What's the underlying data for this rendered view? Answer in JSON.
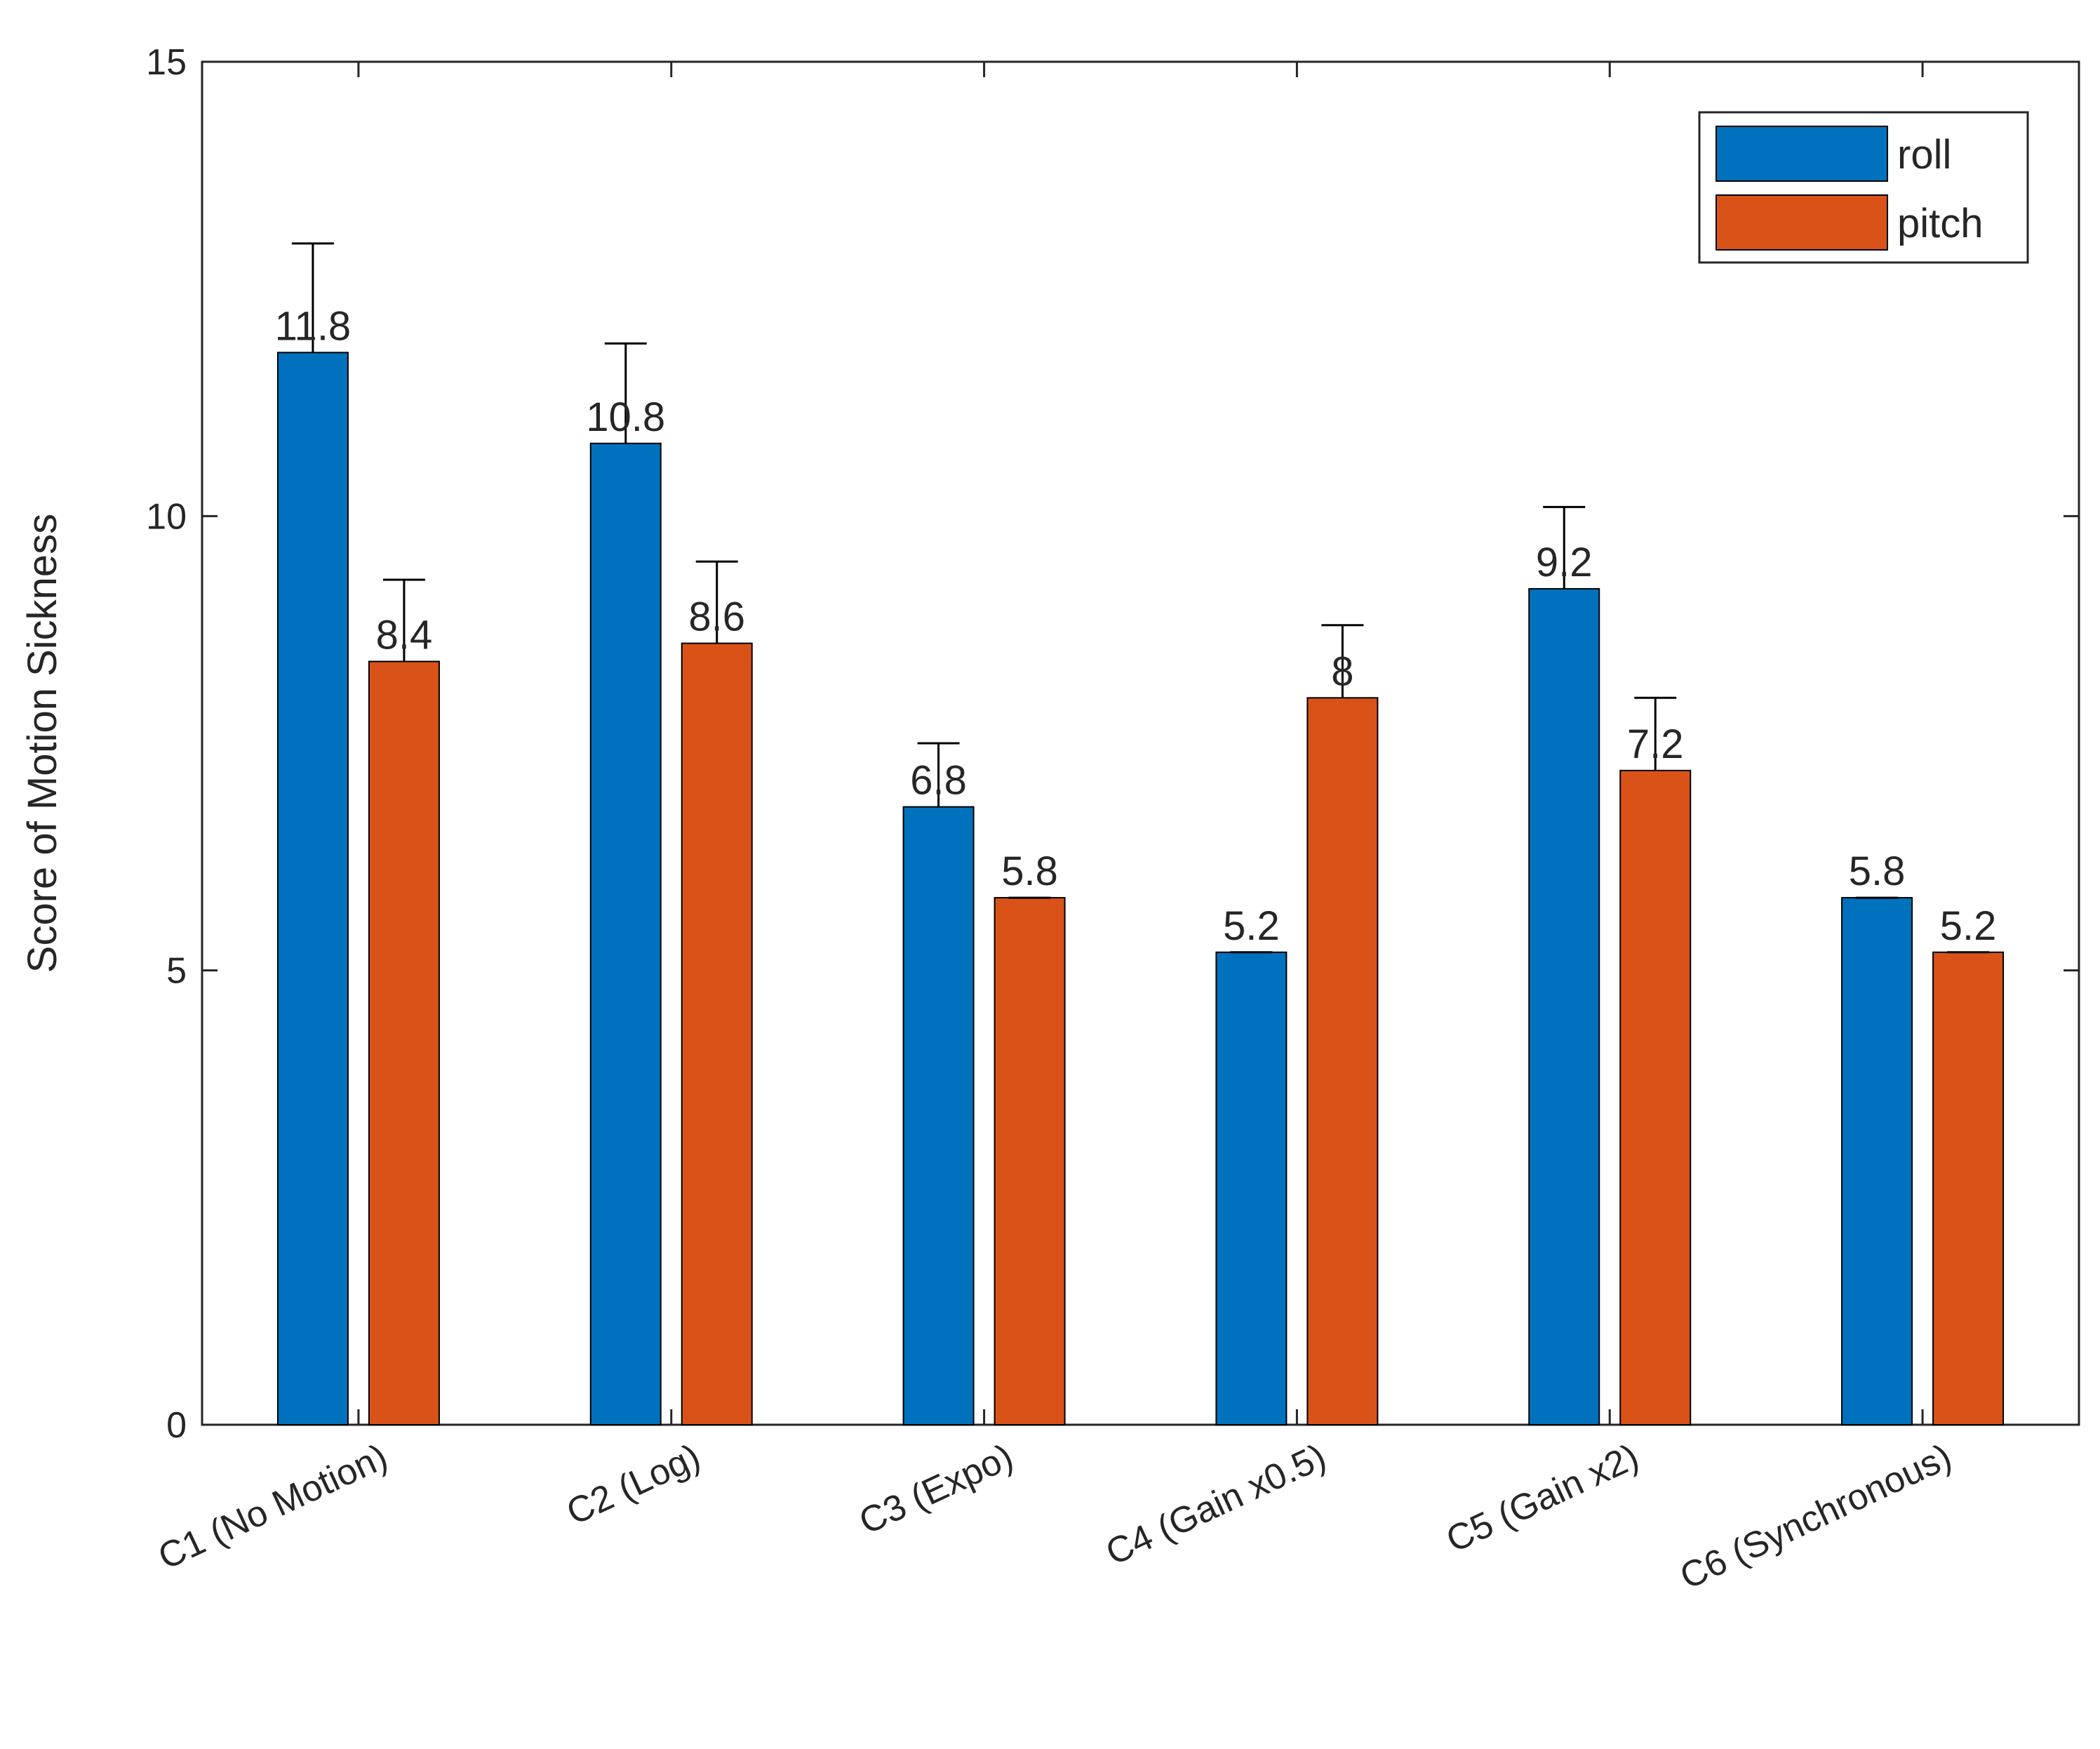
{
  "chart_data": {
    "type": "bar",
    "title": "",
    "xlabel": "",
    "ylabel": "Score of Motion Sickness",
    "ylim": [
      0,
      15
    ],
    "yticks": [
      0,
      5,
      10,
      15
    ],
    "grid": false,
    "legend_position": "top-right",
    "categories": [
      "C1 (No Motion)",
      "C2 (Log)",
      "C3 (Expo)",
      "C4 (Gain x0.5)",
      "C5 (Gain x2)",
      "C6 (Synchronous)"
    ],
    "series": [
      {
        "name": "roll",
        "color": "#0072BD",
        "values": [
          11.8,
          10.8,
          6.8,
          5.2,
          9.2,
          5.8
        ],
        "labels": [
          "11.8",
          "10.8",
          "6.8",
          "5.2",
          "9.2",
          "5.8"
        ],
        "error_upper": [
          13.0,
          11.9,
          7.5,
          5.2,
          10.1,
          5.8
        ]
      },
      {
        "name": "pitch",
        "color": "#D95319",
        "values": [
          8.4,
          8.6,
          5.8,
          8.0,
          7.2,
          5.2
        ],
        "labels": [
          "8.4",
          "8.6",
          "5.8",
          "8",
          "7.2",
          "5.2"
        ],
        "error_upper": [
          9.3,
          9.5,
          5.8,
          8.8,
          8.0,
          5.2
        ]
      }
    ]
  }
}
